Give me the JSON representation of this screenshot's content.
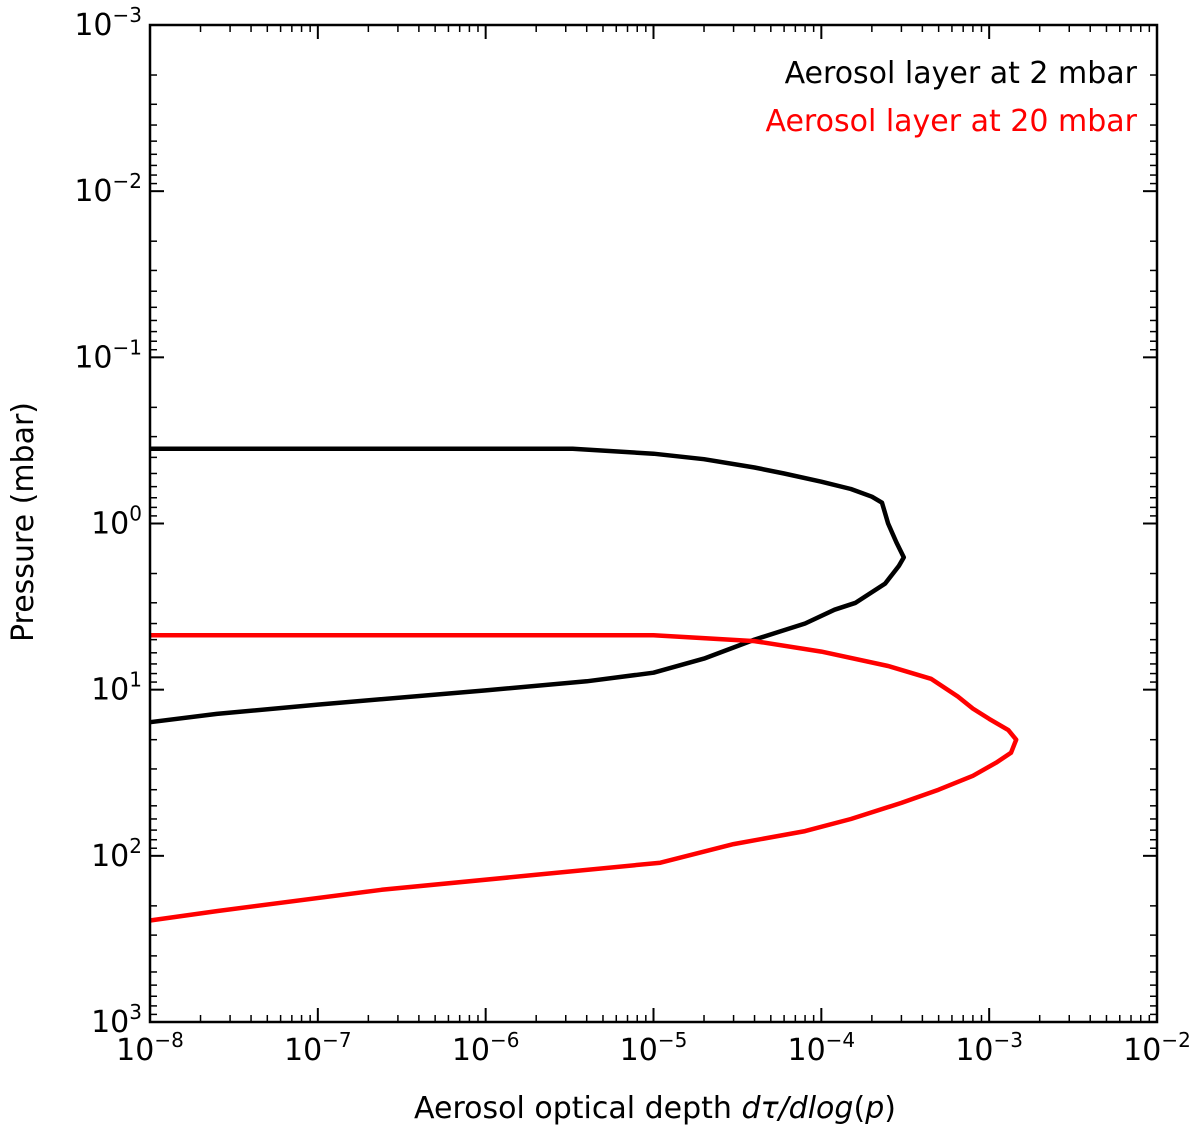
{
  "chart_data": {
    "type": "line",
    "xscale": "log",
    "yscale": "log",
    "yinverted": true,
    "xlim": [
      1e-08,
      0.01
    ],
    "ylim": [
      0.001,
      1000.0
    ],
    "xlabel_prefix": "Aerosol optical depth ",
    "xlabel_math": "dτ/dlog",
    "xlabel_suffix_open": "(",
    "xlabel_var": "p",
    "xlabel_suffix_close": ")",
    "ylabel": "Pressure (mbar)",
    "x_ticks": [
      {
        "base": "10",
        "exp": "−8",
        "value": 1e-08
      },
      {
        "base": "10",
        "exp": "−7",
        "value": 1e-07
      },
      {
        "base": "10",
        "exp": "−6",
        "value": 1e-06
      },
      {
        "base": "10",
        "exp": "−5",
        "value": 1e-05
      },
      {
        "base": "10",
        "exp": "−4",
        "value": 0.0001
      },
      {
        "base": "10",
        "exp": "−3",
        "value": 0.001
      },
      {
        "base": "10",
        "exp": "−2",
        "value": 0.01
      }
    ],
    "y_ticks": [
      {
        "base": "10",
        "exp": "−3",
        "value": 0.001
      },
      {
        "base": "10",
        "exp": "−2",
        "value": 0.01
      },
      {
        "base": "10",
        "exp": "−1",
        "value": 0.1
      },
      {
        "base": "10",
        "exp": "0",
        "value": 1
      },
      {
        "base": "10",
        "exp": "1",
        "value": 10
      },
      {
        "base": "10",
        "exp": "2",
        "value": 100
      },
      {
        "base": "10",
        "exp": "3",
        "value": 1000
      }
    ],
    "legend_position": "top-right",
    "grid": false,
    "series": [
      {
        "name": "Aerosol layer at 2 mbar",
        "color": "#000000",
        "points": [
          [
            1e-08,
            0.355
          ],
          [
            3.3e-06,
            0.355
          ],
          [
            1e-05,
            0.38
          ],
          [
            2e-05,
            0.41
          ],
          [
            4e-05,
            0.46
          ],
          [
            6e-05,
            0.5
          ],
          [
            0.0001,
            0.56
          ],
          [
            0.00015,
            0.62
          ],
          [
            0.0002,
            0.69
          ],
          [
            0.00023,
            0.75
          ],
          [
            0.00025,
            1.0
          ],
          [
            0.00028,
            1.3
          ],
          [
            0.00031,
            1.6
          ],
          [
            0.00029,
            1.8
          ],
          [
            0.00024,
            2.3
          ],
          [
            0.00016,
            3.0
          ],
          [
            0.00012,
            3.3
          ],
          [
            8e-05,
            4.0
          ],
          [
            4e-05,
            5.0
          ],
          [
            2e-05,
            6.5
          ],
          [
            1e-05,
            7.9
          ],
          [
            4e-06,
            8.9
          ],
          [
            1e-06,
            10.1
          ],
          [
            1e-07,
            12.3
          ],
          [
            2.5e-08,
            14.0
          ],
          [
            1e-08,
            15.7
          ]
        ]
      },
      {
        "name": "Aerosol layer at 20 mbar",
        "color": "#ff0000",
        "points": [
          [
            1e-08,
            4.7
          ],
          [
            1e-05,
            4.7
          ],
          [
            4e-05,
            5.1
          ],
          [
            0.0001,
            5.9
          ],
          [
            0.00025,
            7.2
          ],
          [
            0.00045,
            8.6
          ],
          [
            0.00065,
            11.0
          ],
          [
            0.0008,
            13.0
          ],
          [
            0.001,
            15.0
          ],
          [
            0.0013,
            17.5
          ],
          [
            0.00145,
            20.0
          ],
          [
            0.00135,
            24.0
          ],
          [
            0.0011,
            27.5
          ],
          [
            0.0008,
            33.0
          ],
          [
            0.0005,
            40.0
          ],
          [
            0.0003,
            48.0
          ],
          [
            0.00015,
            60.0
          ],
          [
            8e-05,
            71.0
          ],
          [
            3e-05,
            85.0
          ],
          [
            1.1e-05,
            110.0
          ],
          [
            2e-06,
            130.0
          ],
          [
            2.4e-07,
            160.0
          ],
          [
            2.5e-08,
            215.0
          ],
          [
            1e-08,
            245.0
          ]
        ]
      }
    ]
  }
}
